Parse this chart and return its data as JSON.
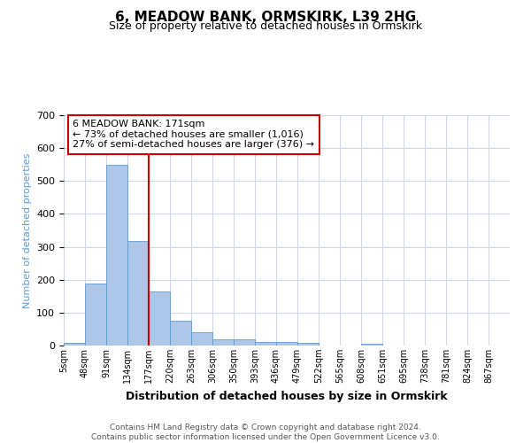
{
  "title": "6, MEADOW BANK, ORMSKIRK, L39 2HG",
  "subtitle": "Size of property relative to detached houses in Ormskirk",
  "xlabel": "Distribution of detached houses by size in Ormskirk",
  "ylabel": "Number of detached properties",
  "footer_line1": "Contains HM Land Registry data © Crown copyright and database right 2024.",
  "footer_line2": "Contains public sector information licensed under the Open Government Licence v3.0.",
  "annotation_line1": "6 MEADOW BANK: 171sqm",
  "annotation_line2": "← 73% of detached houses are smaller (1,016)",
  "annotation_line3": "27% of semi-detached houses are larger (376) →",
  "bar_labels": [
    "5sqm",
    "48sqm",
    "91sqm",
    "134sqm",
    "177sqm",
    "220sqm",
    "263sqm",
    "306sqm",
    "350sqm",
    "393sqm",
    "436sqm",
    "479sqm",
    "522sqm",
    "565sqm",
    "608sqm",
    "651sqm",
    "695sqm",
    "738sqm",
    "781sqm",
    "824sqm",
    "867sqm"
  ],
  "bar_values": [
    8,
    188,
    548,
    318,
    165,
    76,
    40,
    18,
    18,
    11,
    11,
    9,
    0,
    0,
    5,
    0,
    0,
    0,
    0,
    0,
    0
  ],
  "bar_color": "#aec6e8",
  "bar_edge_color": "#5b9bd5",
  "red_line_x": 4.0,
  "ylim": [
    0,
    700
  ],
  "yticks": [
    0,
    100,
    200,
    300,
    400,
    500,
    600,
    700
  ],
  "red_line_color": "#cc0000",
  "annotation_box_color": "#cc0000"
}
